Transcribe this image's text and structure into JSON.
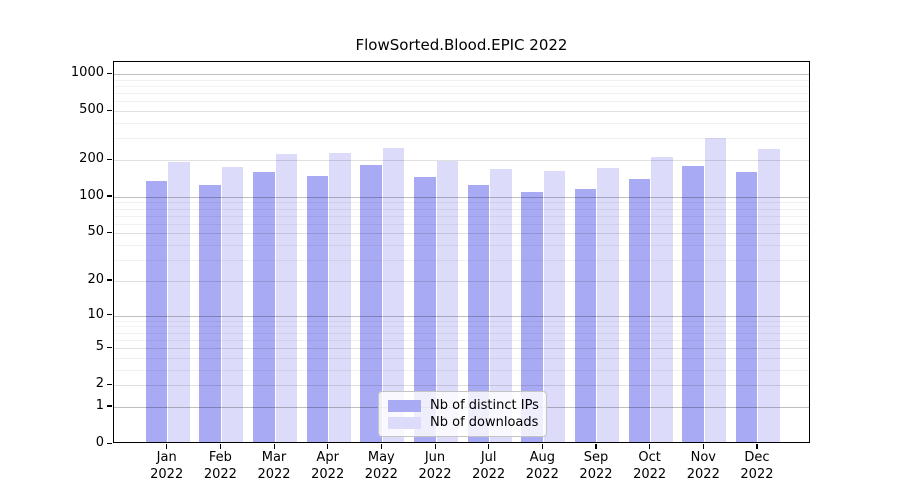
{
  "chart_data": {
    "type": "bar",
    "title": "FlowSorted.Blood.EPIC 2022",
    "categories": [
      "Jan 2022",
      "Feb 2022",
      "Mar 2022",
      "Apr 2022",
      "May 2022",
      "Jun 2022",
      "Jul 2022",
      "Aug 2022",
      "Sep 2022",
      "Oct 2022",
      "Nov 2022",
      "Dec 2022"
    ],
    "x_months": [
      "Jan",
      "Feb",
      "Mar",
      "Apr",
      "May",
      "Jun",
      "Jul",
      "Aug",
      "Sep",
      "Oct",
      "Nov",
      "Dec"
    ],
    "x_year": "2022",
    "series": [
      {
        "name": "Nb of distinct IPs",
        "color": "#a9aaf4",
        "values": [
          129,
          120,
          153,
          142,
          176,
          139,
          120,
          106,
          111,
          135,
          172,
          153
        ]
      },
      {
        "name": "Nb of downloads",
        "color": "#dcdcfa",
        "values": [
          185,
          170,
          216,
          221,
          241,
          189,
          164,
          158,
          165,
          203,
          289,
          237
        ]
      }
    ],
    "xlabel": "",
    "ylabel": "",
    "y_scale": "log10(value+1)",
    "y_ticks": [
      0,
      1,
      2,
      5,
      10,
      20,
      50,
      100,
      200,
      500,
      1000
    ],
    "y_gridlines_major": [
      1,
      10,
      100,
      1000
    ],
    "y_gridlines_mid": [
      2,
      5,
      20,
      50,
      200,
      500
    ],
    "y_gridlines_minor": [
      3,
      4,
      6,
      7,
      8,
      9,
      30,
      40,
      60,
      70,
      80,
      90,
      300,
      400,
      600,
      700,
      800,
      900
    ],
    "ylim": [
      0,
      1200
    ],
    "grid": true,
    "legend_position": "lower center"
  },
  "colors": {
    "background": "#ffffff",
    "axis": "#000000",
    "grid": "#b0b0b0"
  }
}
